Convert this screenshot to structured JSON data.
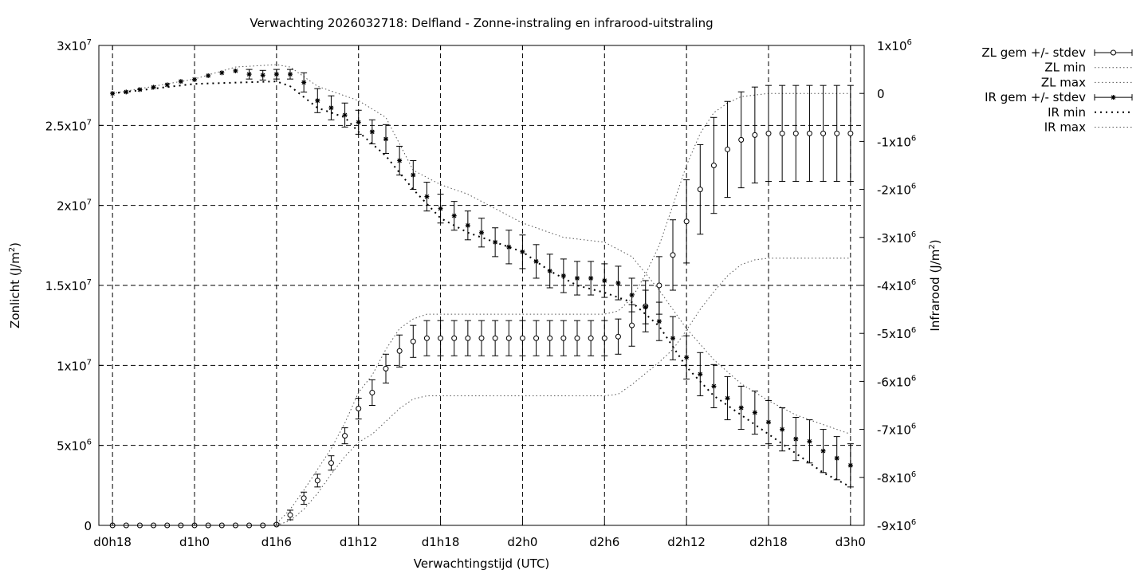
{
  "chart_data": {
    "type": "line",
    "title": "Verwachting 2026032718: Delfland - Zonne-instraling en infrarood-uitstraling",
    "xlabel": "Verwachtingstijd (UTC)",
    "ylabel_left": {
      "base": "Zonlicht (J/m",
      "sup": "2",
      "end": ")"
    },
    "ylabel_right": {
      "base": "Infrarood (J/m",
      "sup": "2",
      "end": ")"
    },
    "x_range": [
      -1,
      55
    ],
    "y_left_range": [
      0,
      30000000
    ],
    "y_right_range": [
      -9000000,
      1000000
    ],
    "x_ticks": [
      {
        "x": 0,
        "label": "d0h18"
      },
      {
        "x": 6,
        "label": "d1h0"
      },
      {
        "x": 12,
        "label": "d1h6"
      },
      {
        "x": 18,
        "label": "d1h12"
      },
      {
        "x": 24,
        "label": "d1h18"
      },
      {
        "x": 30,
        "label": "d2h0"
      },
      {
        "x": 36,
        "label": "d2h6"
      },
      {
        "x": 42,
        "label": "d2h12"
      },
      {
        "x": 48,
        "label": "d2h18"
      },
      {
        "x": 54,
        "label": "d3h0"
      }
    ],
    "y_left_ticks": [
      {
        "v": 0,
        "base": "0",
        "exp": ""
      },
      {
        "v": 5000000,
        "base": "5x10",
        "exp": "6"
      },
      {
        "v": 10000000,
        "base": "1x10",
        "exp": "7"
      },
      {
        "v": 15000000,
        "base": "1.5x10",
        "exp": "7"
      },
      {
        "v": 20000000,
        "base": "2x10",
        "exp": "7"
      },
      {
        "v": 25000000,
        "base": "2.5x10",
        "exp": "7"
      },
      {
        "v": 30000000,
        "base": "3x10",
        "exp": "7"
      }
    ],
    "y_right_ticks": [
      {
        "v": 1000000,
        "base": "1x10",
        "exp": "6"
      },
      {
        "v": 0,
        "base": "0",
        "exp": ""
      },
      {
        "v": -1000000,
        "base": "-1x10",
        "exp": "6"
      },
      {
        "v": -2000000,
        "base": "-2x10",
        "exp": "6"
      },
      {
        "v": -3000000,
        "base": "-3x10",
        "exp": "6"
      },
      {
        "v": -4000000,
        "base": "-4x10",
        "exp": "6"
      },
      {
        "v": -5000000,
        "base": "-5x10",
        "exp": "6"
      },
      {
        "v": -6000000,
        "base": "-6x10",
        "exp": "6"
      },
      {
        "v": -7000000,
        "base": "-7x10",
        "exp": "6"
      },
      {
        "v": -8000000,
        "base": "-8x10",
        "exp": "6"
      },
      {
        "v": -9000000,
        "base": "-9x10",
        "exp": "6"
      }
    ],
    "grid": true,
    "legend_position": "outside-right-top",
    "legend": [
      {
        "label": "ZL gem +/- stdev",
        "style": "errorbar-circle"
      },
      {
        "label": "ZL min",
        "style": "dotted"
      },
      {
        "label": "ZL max",
        "style": "dotted"
      },
      {
        "label": "IR gem +/- stdev",
        "style": "errorbar-star"
      },
      {
        "label": "IR min",
        "style": "dotted-coarse"
      },
      {
        "label": "IR max",
        "style": "dotted"
      }
    ],
    "series": [
      {
        "name": "ZL gem +/- stdev",
        "axis": "left",
        "marker": "circle",
        "points": [
          [
            0,
            0,
            0
          ],
          [
            1,
            0,
            0
          ],
          [
            2,
            0,
            0
          ],
          [
            3,
            0,
            0
          ],
          [
            4,
            0,
            0
          ],
          [
            5,
            0,
            0
          ],
          [
            6,
            0,
            0
          ],
          [
            7,
            0,
            0
          ],
          [
            8,
            0,
            0
          ],
          [
            9,
            0,
            0
          ],
          [
            10,
            0,
            0
          ],
          [
            11,
            0,
            0
          ],
          [
            12,
            50000,
            50000
          ],
          [
            13,
            650000,
            300000
          ],
          [
            14,
            1700000,
            380000
          ],
          [
            15,
            2800000,
            400000
          ],
          [
            16,
            3900000,
            450000
          ],
          [
            17,
            5600000,
            500000
          ],
          [
            18,
            7300000,
            650000
          ],
          [
            19,
            8300000,
            800000
          ],
          [
            20,
            9800000,
            900000
          ],
          [
            21,
            10900000,
            1000000
          ],
          [
            22,
            11500000,
            1000000
          ],
          [
            23,
            11700000,
            1100000
          ],
          [
            24,
            11700000,
            1100000
          ],
          [
            25,
            11700000,
            1100000
          ],
          [
            26,
            11700000,
            1100000
          ],
          [
            27,
            11700000,
            1100000
          ],
          [
            28,
            11700000,
            1100000
          ],
          [
            29,
            11700000,
            1100000
          ],
          [
            30,
            11700000,
            1100000
          ],
          [
            31,
            11700000,
            1100000
          ],
          [
            32,
            11700000,
            1100000
          ],
          [
            33,
            11700000,
            1100000
          ],
          [
            34,
            11700000,
            1100000
          ],
          [
            35,
            11700000,
            1100000
          ],
          [
            36,
            11700000,
            1100000
          ],
          [
            37,
            11800000,
            1100000
          ],
          [
            38,
            12500000,
            1300000
          ],
          [
            39,
            13700000,
            1600000
          ],
          [
            40,
            15000000,
            1800000
          ],
          [
            41,
            16900000,
            2200000
          ],
          [
            42,
            19000000,
            2600000
          ],
          [
            43,
            21000000,
            2800000
          ],
          [
            44,
            22500000,
            3000000
          ],
          [
            45,
            23500000,
            3000000
          ],
          [
            46,
            24100000,
            3000000
          ],
          [
            47,
            24400000,
            3000000
          ],
          [
            48,
            24500000,
            3000000
          ],
          [
            49,
            24500000,
            3000000
          ],
          [
            50,
            24500000,
            3000000
          ],
          [
            51,
            24500000,
            3000000
          ],
          [
            52,
            24500000,
            3000000
          ],
          [
            53,
            24500000,
            3000000
          ],
          [
            54,
            24500000,
            3000000
          ]
        ]
      },
      {
        "name": "ZL min",
        "axis": "left",
        "points": [
          [
            12,
            0
          ],
          [
            13,
            300000
          ],
          [
            14,
            1000000
          ],
          [
            15,
            2000000
          ],
          [
            16,
            3200000
          ],
          [
            17,
            4300000
          ],
          [
            18,
            5200000
          ],
          [
            19,
            5700000
          ],
          [
            20,
            6500000
          ],
          [
            21,
            7300000
          ],
          [
            22,
            7900000
          ],
          [
            23,
            8100000
          ],
          [
            26,
            8100000
          ],
          [
            30,
            8100000
          ],
          [
            34,
            8100000
          ],
          [
            36,
            8100000
          ],
          [
            37,
            8200000
          ],
          [
            38,
            8800000
          ],
          [
            39,
            9500000
          ],
          [
            40,
            10200000
          ],
          [
            41,
            11000000
          ],
          [
            42,
            12200000
          ],
          [
            43,
            13500000
          ],
          [
            44,
            14600000
          ],
          [
            45,
            15600000
          ],
          [
            46,
            16300000
          ],
          [
            47,
            16600000
          ],
          [
            48,
            16700000
          ],
          [
            54,
            16700000
          ]
        ]
      },
      {
        "name": "ZL max",
        "axis": "left",
        "points": [
          [
            12,
            100000
          ],
          [
            13,
            1000000
          ],
          [
            14,
            2200000
          ],
          [
            15,
            3500000
          ],
          [
            16,
            4800000
          ],
          [
            17,
            6400000
          ],
          [
            18,
            8300000
          ],
          [
            19,
            9400000
          ],
          [
            20,
            11000000
          ],
          [
            21,
            12300000
          ],
          [
            22,
            12900000
          ],
          [
            23,
            13200000
          ],
          [
            26,
            13200000
          ],
          [
            30,
            13200000
          ],
          [
            34,
            13200000
          ],
          [
            36,
            13200000
          ],
          [
            37,
            13400000
          ],
          [
            38,
            14200000
          ],
          [
            39,
            15700000
          ],
          [
            40,
            17500000
          ],
          [
            41,
            20000000
          ],
          [
            42,
            22500000
          ],
          [
            43,
            24500000
          ],
          [
            44,
            25800000
          ],
          [
            45,
            26400000
          ],
          [
            46,
            26800000
          ],
          [
            47,
            26900000
          ],
          [
            48,
            27000000
          ],
          [
            54,
            27000000
          ]
        ]
      },
      {
        "name": "IR gem +/- stdev",
        "axis": "right",
        "marker": "star",
        "points": [
          [
            0,
            0,
            0
          ],
          [
            1,
            30000,
            0
          ],
          [
            2,
            80000,
            0
          ],
          [
            3,
            130000,
            0
          ],
          [
            4,
            180000,
            0
          ],
          [
            5,
            250000,
            0
          ],
          [
            6,
            290000,
            0
          ],
          [
            7,
            370000,
            0
          ],
          [
            8,
            430000,
            0
          ],
          [
            9,
            470000,
            0
          ],
          [
            10,
            400000,
            100000
          ],
          [
            11,
            380000,
            100000
          ],
          [
            12,
            400000,
            100000
          ],
          [
            13,
            400000,
            100000
          ],
          [
            14,
            230000,
            200000
          ],
          [
            15,
            -150000,
            250000
          ],
          [
            16,
            -300000,
            250000
          ],
          [
            17,
            -450000,
            250000
          ],
          [
            18,
            -600000,
            250000
          ],
          [
            19,
            -800000,
            250000
          ],
          [
            20,
            -950000,
            300000
          ],
          [
            21,
            -1400000,
            300000
          ],
          [
            22,
            -1700000,
            300000
          ],
          [
            23,
            -2150000,
            300000
          ],
          [
            24,
            -2400000,
            300000
          ],
          [
            25,
            -2550000,
            300000
          ],
          [
            26,
            -2750000,
            300000
          ],
          [
            27,
            -2900000,
            300000
          ],
          [
            28,
            -3100000,
            300000
          ],
          [
            29,
            -3200000,
            350000
          ],
          [
            30,
            -3300000,
            350000
          ],
          [
            31,
            -3500000,
            350000
          ],
          [
            32,
            -3700000,
            350000
          ],
          [
            33,
            -3800000,
            350000
          ],
          [
            34,
            -3850000,
            350000
          ],
          [
            35,
            -3850000,
            350000
          ],
          [
            36,
            -3900000,
            350000
          ],
          [
            37,
            -3950000,
            350000
          ],
          [
            38,
            -4200000,
            350000
          ],
          [
            39,
            -4450000,
            350000
          ],
          [
            40,
            -4750000,
            400000
          ],
          [
            41,
            -5100000,
            450000
          ],
          [
            42,
            -5500000,
            450000
          ],
          [
            43,
            -5850000,
            450000
          ],
          [
            44,
            -6100000,
            450000
          ],
          [
            45,
            -6350000,
            450000
          ],
          [
            46,
            -6550000,
            450000
          ],
          [
            47,
            -6650000,
            450000
          ],
          [
            48,
            -6850000,
            450000
          ],
          [
            49,
            -7000000,
            450000
          ],
          [
            50,
            -7200000,
            450000
          ],
          [
            51,
            -7250000,
            450000
          ],
          [
            52,
            -7450000,
            450000
          ],
          [
            53,
            -7600000,
            450000
          ],
          [
            54,
            -7750000,
            450000
          ]
        ]
      },
      {
        "name": "IR min",
        "axis": "right",
        "points": [
          [
            0,
            0
          ],
          [
            6,
            200000
          ],
          [
            12,
            250000
          ],
          [
            13,
            150000
          ],
          [
            15,
            -300000
          ],
          [
            17,
            -500000
          ],
          [
            18,
            -800000
          ],
          [
            20,
            -1300000
          ],
          [
            22,
            -2000000
          ],
          [
            24,
            -2600000
          ],
          [
            26,
            -2900000
          ],
          [
            28,
            -3100000
          ],
          [
            30,
            -3300000
          ],
          [
            32,
            -3700000
          ],
          [
            34,
            -4000000
          ],
          [
            36,
            -4150000
          ],
          [
            38,
            -4350000
          ],
          [
            40,
            -4850000
          ],
          [
            42,
            -5700000
          ],
          [
            44,
            -6300000
          ],
          [
            46,
            -6700000
          ],
          [
            48,
            -7100000
          ],
          [
            50,
            -7500000
          ],
          [
            52,
            -7900000
          ],
          [
            54,
            -8200000
          ]
        ]
      },
      {
        "name": "IR max",
        "axis": "right",
        "points": [
          [
            0,
            0
          ],
          [
            3,
            150000
          ],
          [
            6,
            300000
          ],
          [
            9,
            550000
          ],
          [
            12,
            600000
          ],
          [
            13,
            550000
          ],
          [
            15,
            150000
          ],
          [
            18,
            -150000
          ],
          [
            20,
            -500000
          ],
          [
            22,
            -1600000
          ],
          [
            24,
            -1900000
          ],
          [
            26,
            -2100000
          ],
          [
            28,
            -2400000
          ],
          [
            30,
            -2700000
          ],
          [
            33,
            -3000000
          ],
          [
            36,
            -3100000
          ],
          [
            38,
            -3400000
          ],
          [
            40,
            -4100000
          ],
          [
            42,
            -4900000
          ],
          [
            44,
            -5550000
          ],
          [
            46,
            -6050000
          ],
          [
            48,
            -6400000
          ],
          [
            50,
            -6700000
          ],
          [
            52,
            -6900000
          ],
          [
            54,
            -7100000
          ]
        ]
      }
    ]
  }
}
